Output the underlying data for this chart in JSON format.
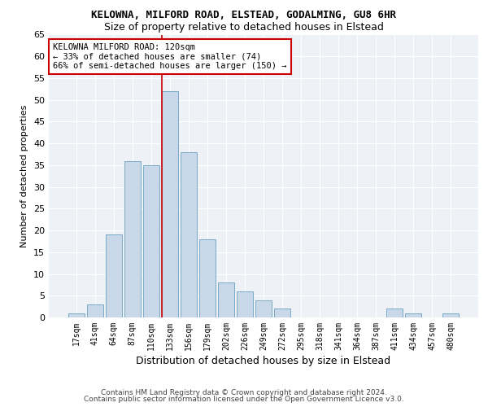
{
  "title1": "KELOWNA, MILFORD ROAD, ELSTEAD, GODALMING, GU8 6HR",
  "title2": "Size of property relative to detached houses in Elstead",
  "xlabel": "Distribution of detached houses by size in Elstead",
  "ylabel": "Number of detached properties",
  "categories": [
    "17sqm",
    "41sqm",
    "64sqm",
    "87sqm",
    "110sqm",
    "133sqm",
    "156sqm",
    "179sqm",
    "202sqm",
    "226sqm",
    "249sqm",
    "272sqm",
    "295sqm",
    "318sqm",
    "341sqm",
    "364sqm",
    "387sqm",
    "411sqm",
    "434sqm",
    "457sqm",
    "480sqm"
  ],
  "values": [
    1,
    3,
    19,
    36,
    35,
    52,
    38,
    18,
    8,
    6,
    4,
    2,
    0,
    0,
    0,
    0,
    0,
    2,
    1,
    0,
    1
  ],
  "bar_color": "#c8d8e8",
  "bar_edge_color": "#7aaac8",
  "vline_x_index": 4.55,
  "vline_color": "#cc0000",
  "annotation_line1": "KELOWNA MILFORD ROAD: 120sqm",
  "annotation_line2": "← 33% of detached houses are smaller (74)",
  "annotation_line3": "66% of semi-detached houses are larger (150) →",
  "ylim": [
    0,
    65
  ],
  "yticks": [
    0,
    5,
    10,
    15,
    20,
    25,
    30,
    35,
    40,
    45,
    50,
    55,
    60,
    65
  ],
  "bg_color": "#eef2f7",
  "grid_color": "#ffffff",
  "title1_fontsize": 9,
  "title2_fontsize": 9,
  "ylabel_fontsize": 8,
  "xlabel_fontsize": 9,
  "tick_fontsize": 7,
  "ytick_fontsize": 8,
  "annot_fontsize": 7.5,
  "footer1": "Contains HM Land Registry data © Crown copyright and database right 2024.",
  "footer2": "Contains public sector information licensed under the Open Government Licence v3.0.",
  "footer_fontsize": 6.5
}
